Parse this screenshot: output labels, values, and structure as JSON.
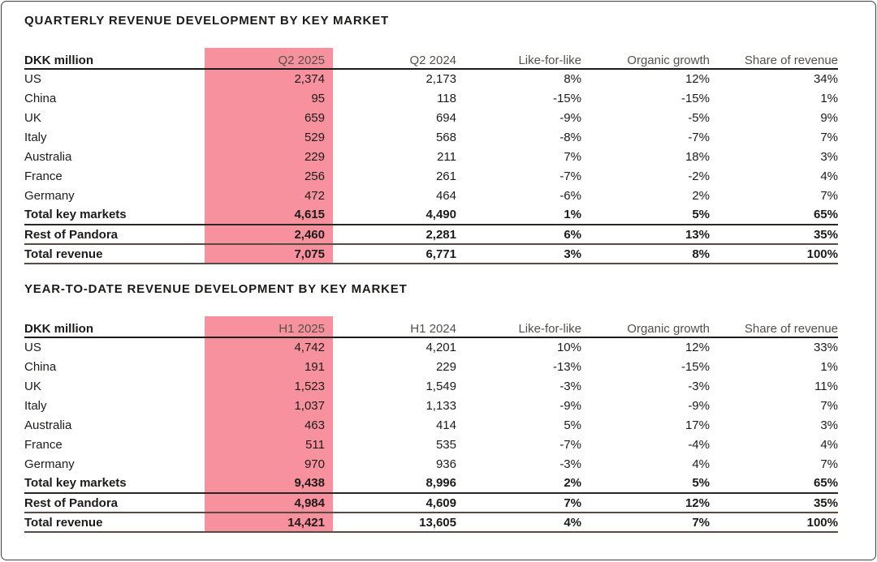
{
  "colors": {
    "highlight_pink": "#F8919E",
    "text_dark": "#1c1b1a",
    "text_muted": "#54504b",
    "rule_dark": "#2a2623",
    "rule_brown": "#584b41",
    "page_border": "#3f3f3f"
  },
  "tables": [
    {
      "title": "QUARTERLY REVENUE DEVELOPMENT BY KEY MARKET",
      "columns": [
        "DKK million",
        "Q2 2025",
        "Q2 2024",
        "Like-for-like",
        "Organic growth",
        "Share of revenue"
      ],
      "highlight_column": "Q2 2025",
      "rows": [
        {
          "label": "US",
          "values": [
            "2,374",
            "2,173",
            "8%",
            "12%",
            "34%"
          ],
          "bold": false
        },
        {
          "label": "China",
          "values": [
            "95",
            "118",
            "-15%",
            "-15%",
            "1%"
          ],
          "bold": false
        },
        {
          "label": "UK",
          "values": [
            "659",
            "694",
            "-9%",
            "-5%",
            "9%"
          ],
          "bold": false
        },
        {
          "label": "Italy",
          "values": [
            "529",
            "568",
            "-8%",
            "-7%",
            "7%"
          ],
          "bold": false
        },
        {
          "label": "Australia",
          "values": [
            "229",
            "211",
            "7%",
            "18%",
            "3%"
          ],
          "bold": false
        },
        {
          "label": "France",
          "values": [
            "256",
            "261",
            "-7%",
            "-2%",
            "4%"
          ],
          "bold": false
        },
        {
          "label": "Germany",
          "values": [
            "472",
            "464",
            "-6%",
            "2%",
            "7%"
          ],
          "bold": false
        },
        {
          "label": "Total key markets",
          "values": [
            "4,615",
            "4,490",
            "1%",
            "5%",
            "65%"
          ],
          "bold": true,
          "rule_after": "dark"
        },
        {
          "label": "Rest of Pandora",
          "values": [
            "2,460",
            "2,281",
            "6%",
            "13%",
            "35%"
          ],
          "bold": true,
          "rule_after": "brown"
        },
        {
          "label": "Total revenue",
          "values": [
            "7,075",
            "6,771",
            "3%",
            "8%",
            "100%"
          ],
          "bold": true,
          "rule_after": "brown"
        }
      ]
    },
    {
      "title": "YEAR-TO-DATE REVENUE DEVELOPMENT BY KEY MARKET",
      "columns": [
        "DKK million",
        "H1 2025",
        "H1 2024",
        "Like-for-like",
        "Organic growth",
        "Share of revenue"
      ],
      "highlight_column": "H1 2025",
      "rows": [
        {
          "label": "US",
          "values": [
            "4,742",
            "4,201",
            "10%",
            "12%",
            "33%"
          ],
          "bold": false
        },
        {
          "label": "China",
          "values": [
            "191",
            "229",
            "-13%",
            "-15%",
            "1%"
          ],
          "bold": false
        },
        {
          "label": "UK",
          "values": [
            "1,523",
            "1,549",
            "-3%",
            "-3%",
            "11%"
          ],
          "bold": false
        },
        {
          "label": "Italy",
          "values": [
            "1,037",
            "1,133",
            "-9%",
            "-9%",
            "7%"
          ],
          "bold": false
        },
        {
          "label": "Australia",
          "values": [
            "463",
            "414",
            "5%",
            "17%",
            "3%"
          ],
          "bold": false
        },
        {
          "label": "France",
          "values": [
            "511",
            "535",
            "-7%",
            "-4%",
            "4%"
          ],
          "bold": false
        },
        {
          "label": "Germany",
          "values": [
            "970",
            "936",
            "-3%",
            "4%",
            "7%"
          ],
          "bold": false
        },
        {
          "label": "Total key markets",
          "values": [
            "9,438",
            "8,996",
            "2%",
            "5%",
            "65%"
          ],
          "bold": true,
          "rule_after": "dark"
        },
        {
          "label": "Rest of Pandora",
          "values": [
            "4,984",
            "4,609",
            "7%",
            "12%",
            "35%"
          ],
          "bold": true,
          "rule_after": "brown"
        },
        {
          "label": "Total revenue",
          "values": [
            "14,421",
            "13,605",
            "4%",
            "7%",
            "100%"
          ],
          "bold": true,
          "rule_after": "brown"
        }
      ]
    }
  ]
}
